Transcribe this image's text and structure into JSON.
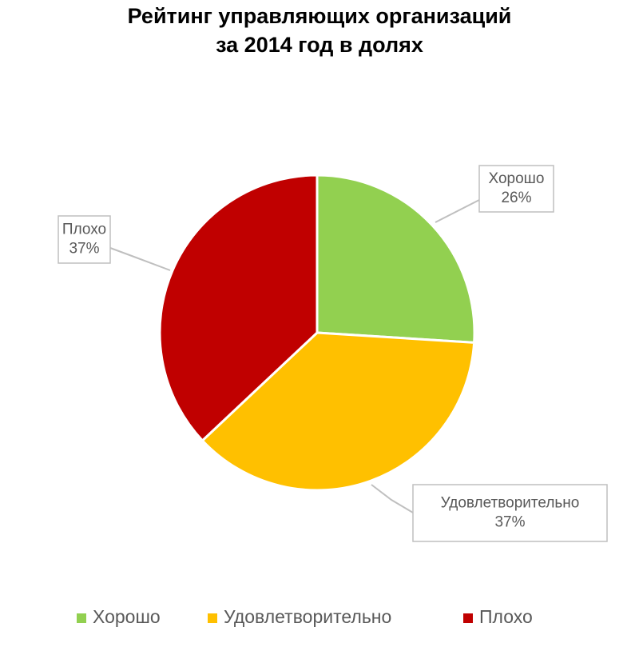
{
  "chart_data": {
    "type": "pie",
    "title": [
      "Рейтинг управляющих организаций",
      "за 2014 год в долях"
    ],
    "categories": [
      "Хорошо",
      "Удовлетворительно",
      "Плохо"
    ],
    "values": [
      26,
      37,
      37
    ],
    "value_labels": [
      "26%",
      "37%",
      "37%"
    ],
    "colors": [
      "#92d050",
      "#ffc000",
      "#c00000"
    ],
    "legend": "bottom"
  }
}
